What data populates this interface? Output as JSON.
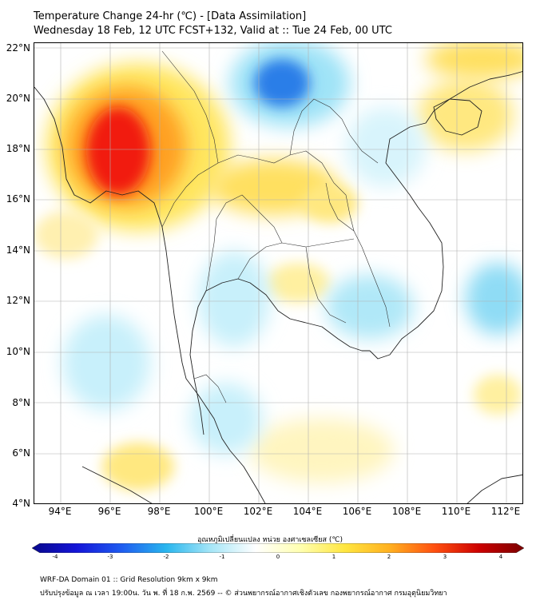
{
  "header": {
    "title_line1": "Temperature Change 24-hr (℃) - [Data Assimilation]",
    "title_line2": "Wednesday 18 Feb, 12 UTC FCST+132, Valid at :: Tue 24 Feb, 00 UTC"
  },
  "map": {
    "lat_labels": [
      "22°N",
      "20°N",
      "18°N",
      "16°N",
      "14°N",
      "12°N",
      "10°N",
      "8°N",
      "6°N",
      "4°N"
    ],
    "lon_labels": [
      "94°E",
      "96°E",
      "98°E",
      "100°E",
      "102°E",
      "104°E",
      "106°E",
      "108°E",
      "110°E",
      "112°E"
    ],
    "features": [
      {
        "name": "warm-anomaly-myanmar",
        "sign": "warm",
        "approx_change_c": 3.0
      },
      {
        "name": "warm-anomaly-south-china",
        "sign": "warm",
        "approx_change_c": 1.5
      },
      {
        "name": "warm-anomaly-north-thailand",
        "sign": "warm",
        "approx_change_c": 1.5
      },
      {
        "name": "warm-anomaly-northeast-thailand",
        "sign": "warm",
        "approx_change_c": 1.0
      },
      {
        "name": "cold-anomaly-laos-north",
        "sign": "cold",
        "approx_change_c": -2.0
      },
      {
        "name": "cold-anomaly-south-china-sea",
        "sign": "cold",
        "approx_change_c": -1.0
      },
      {
        "name": "cold-anomaly-cambodia",
        "sign": "cold",
        "approx_change_c": -1.0
      }
    ]
  },
  "colorbar": {
    "label": "อุณหภูมิเปลี่ยนแปลง หน่วย องศาเซลเซียส (℃)",
    "min": -4,
    "max": 4,
    "ticks": [
      "-4",
      "-3",
      "-2",
      "-1",
      "0",
      "1",
      "2",
      "3",
      "4"
    ],
    "colors": [
      "#08088c",
      "#1515d8",
      "#1f5cf0",
      "#29b6ee",
      "#a6e6f7",
      "#ffffff",
      "#ffffb0",
      "#ffe640",
      "#ffb020",
      "#ff5010",
      "#cc0000",
      "#7a0000"
    ]
  },
  "footer": {
    "line1": "WRF-DA Domain 01 :: Grid Resolution 9km x 9km",
    "line2": "ปรับปรุงข้อมูล ณ เวลา 19:00น. วัน พ. ที่ 18 ก.พ. 2569 -- © ส่วนพยากรณ์อากาศเชิงตัวเลข กองพยากรณ์อากาศ กรมอุตุนิยมวิทยา"
  }
}
